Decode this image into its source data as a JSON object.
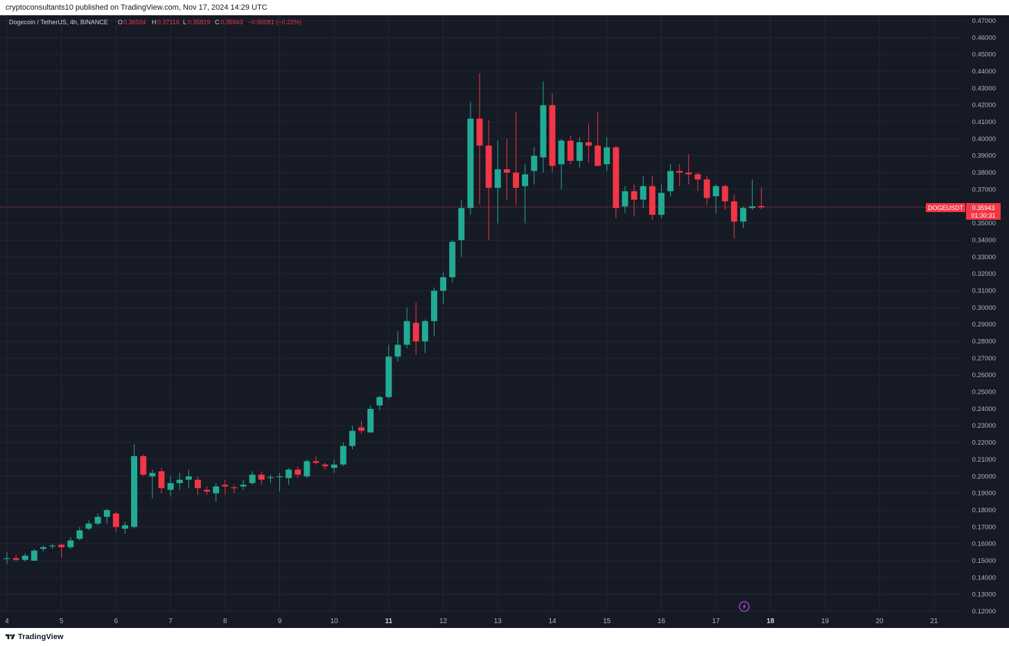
{
  "header": {
    "text": "cryptoconsultants10 published on TradingView.com, Nov 17, 2024 14:29 UTC"
  },
  "legend": {
    "symbol": "Dogecoin / TetherUS, 4h, BINANCE",
    "o_label": "O",
    "o_value": "0.36024",
    "h_label": "H",
    "h_value": "0.37116",
    "l_label": "L",
    "l_value": "0.35819",
    "c_label": "C",
    "c_value": "0.35943",
    "change": "−0.00081 (−0.22%)"
  },
  "price_tag": {
    "symbol": "DOGEUSDT",
    "price": "0.35943",
    "countdown": "01:30:31"
  },
  "footer": {
    "brand": "TradingView"
  },
  "colors": {
    "background": "#161a25",
    "up": "#22ab94",
    "down": "#f23645",
    "grid": "#232733",
    "text": "#b2b5be",
    "price_tag": "#f23645"
  },
  "chart_data": {
    "type": "candlestick",
    "x_labels": [
      "4",
      "5",
      "6",
      "7",
      "8",
      "9",
      "10",
      "11",
      "12",
      "13",
      "14",
      "15",
      "16",
      "17",
      "18",
      "19",
      "20",
      "21"
    ],
    "bold_x_labels": [
      "11",
      "18"
    ],
    "y_ticks": [
      "0.12000",
      "0.13000",
      "0.14000",
      "0.15000",
      "0.16000",
      "0.17000",
      "0.18000",
      "0.19000",
      "0.20000",
      "0.21000",
      "0.22000",
      "0.23000",
      "0.24000",
      "0.25000",
      "0.26000",
      "0.27000",
      "0.28000",
      "0.29000",
      "0.30000",
      "0.31000",
      "0.32000",
      "0.33000",
      "0.34000",
      "0.35000",
      "0.36000",
      "0.37000",
      "0.38000",
      "0.39000",
      "0.40000",
      "0.41000",
      "0.42000",
      "0.43000",
      "0.44000",
      "0.45000",
      "0.46000",
      "0.47000"
    ],
    "ylim": [
      0.12,
      0.47
    ],
    "xlim_days": [
      4,
      21.5
    ],
    "candles_per_day": 6,
    "first_candle_day": 4,
    "last_price": 0.35943,
    "candles": [
      [
        0.151,
        0.155,
        0.148,
        0.1515
      ],
      [
        0.1515,
        0.1535,
        0.1495,
        0.1505
      ],
      [
        0.1505,
        0.1545,
        0.1495,
        0.153
      ],
      [
        0.15,
        0.157,
        0.15,
        0.156
      ],
      [
        0.157,
        0.159,
        0.1555,
        0.158
      ],
      [
        0.1585,
        0.16,
        0.157,
        0.159
      ],
      [
        0.1595,
        0.16,
        0.152,
        0.158
      ],
      [
        0.158,
        0.164,
        0.157,
        0.162
      ],
      [
        0.163,
        0.17,
        0.162,
        0.168
      ],
      [
        0.169,
        0.174,
        0.168,
        0.172
      ],
      [
        0.172,
        0.178,
        0.171,
        0.176
      ],
      [
        0.176,
        0.181,
        0.172,
        0.18
      ],
      [
        0.178,
        0.179,
        0.167,
        0.17
      ],
      [
        0.169,
        0.173,
        0.166,
        0.171
      ],
      [
        0.17,
        0.219,
        0.169,
        0.212
      ],
      [
        0.212,
        0.213,
        0.2,
        0.201
      ],
      [
        0.2,
        0.204,
        0.187,
        0.202
      ],
      [
        0.203,
        0.205,
        0.19,
        0.193
      ],
      [
        0.192,
        0.2,
        0.188,
        0.196
      ],
      [
        0.196,
        0.202,
        0.192,
        0.198
      ],
      [
        0.198,
        0.204,
        0.193,
        0.2
      ],
      [
        0.198,
        0.2,
        0.189,
        0.193
      ],
      [
        0.192,
        0.194,
        0.189,
        0.191
      ],
      [
        0.19,
        0.196,
        0.185,
        0.194
      ],
      [
        0.195,
        0.198,
        0.189,
        0.194
      ],
      [
        0.1935,
        0.195,
        0.19,
        0.193
      ],
      [
        0.194,
        0.198,
        0.192,
        0.195
      ],
      [
        0.196,
        0.203,
        0.195,
        0.201
      ],
      [
        0.201,
        0.203,
        0.195,
        0.198
      ],
      [
        0.199,
        0.201,
        0.196,
        0.1995
      ],
      [
        0.1995,
        0.202,
        0.191,
        0.2
      ],
      [
        0.199,
        0.205,
        0.195,
        0.204
      ],
      [
        0.204,
        0.206,
        0.199,
        0.201
      ],
      [
        0.2,
        0.21,
        0.199,
        0.209
      ],
      [
        0.209,
        0.212,
        0.207,
        0.208
      ],
      [
        0.207,
        0.208,
        0.204,
        0.206
      ],
      [
        0.205,
        0.21,
        0.202,
        0.207
      ],
      [
        0.207,
        0.22,
        0.206,
        0.218
      ],
      [
        0.218,
        0.23,
        0.216,
        0.227
      ],
      [
        0.229,
        0.233,
        0.225,
        0.227
      ],
      [
        0.226,
        0.242,
        0.226,
        0.24
      ],
      [
        0.242,
        0.248,
        0.239,
        0.247
      ],
      [
        0.247,
        0.278,
        0.246,
        0.271
      ],
      [
        0.271,
        0.286,
        0.268,
        0.278
      ],
      [
        0.278,
        0.3,
        0.276,
        0.292
      ],
      [
        0.291,
        0.303,
        0.272,
        0.28
      ],
      [
        0.28,
        0.293,
        0.273,
        0.292
      ],
      [
        0.292,
        0.312,
        0.283,
        0.31
      ],
      [
        0.31,
        0.321,
        0.302,
        0.318
      ],
      [
        0.318,
        0.34,
        0.315,
        0.339
      ],
      [
        0.34,
        0.364,
        0.33,
        0.359
      ],
      [
        0.359,
        0.422,
        0.355,
        0.412
      ],
      [
        0.412,
        0.439,
        0.361,
        0.396
      ],
      [
        0.396,
        0.411,
        0.34,
        0.371
      ],
      [
        0.371,
        0.399,
        0.35,
        0.382
      ],
      [
        0.382,
        0.4,
        0.364,
        0.38
      ],
      [
        0.38,
        0.416,
        0.361,
        0.371
      ],
      [
        0.372,
        0.385,
        0.35,
        0.379
      ],
      [
        0.381,
        0.395,
        0.373,
        0.39
      ],
      [
        0.389,
        0.434,
        0.38,
        0.42
      ],
      [
        0.42,
        0.427,
        0.38,
        0.384
      ],
      [
        0.385,
        0.4,
        0.37,
        0.399
      ],
      [
        0.399,
        0.402,
        0.385,
        0.387
      ],
      [
        0.387,
        0.401,
        0.383,
        0.398
      ],
      [
        0.398,
        0.409,
        0.386,
        0.396
      ],
      [
        0.396,
        0.416,
        0.384,
        0.384
      ],
      [
        0.385,
        0.401,
        0.381,
        0.395
      ],
      [
        0.395,
        0.396,
        0.353,
        0.359
      ],
      [
        0.36,
        0.372,
        0.356,
        0.369
      ],
      [
        0.369,
        0.373,
        0.354,
        0.364
      ],
      [
        0.364,
        0.378,
        0.359,
        0.372
      ],
      [
        0.372,
        0.378,
        0.352,
        0.355
      ],
      [
        0.355,
        0.373,
        0.353,
        0.368
      ],
      [
        0.369,
        0.385,
        0.366,
        0.381
      ],
      [
        0.381,
        0.385,
        0.372,
        0.38
      ],
      [
        0.38,
        0.391,
        0.373,
        0.379
      ],
      [
        0.379,
        0.38,
        0.369,
        0.376
      ],
      [
        0.376,
        0.378,
        0.361,
        0.365
      ],
      [
        0.366,
        0.373,
        0.356,
        0.372
      ],
      [
        0.372,
        0.373,
        0.358,
        0.363
      ],
      [
        0.363,
        0.367,
        0.341,
        0.351
      ],
      [
        0.351,
        0.36,
        0.347,
        0.359
      ],
      [
        0.359,
        0.376,
        0.358,
        0.36
      ],
      [
        0.3602,
        0.3712,
        0.3582,
        0.3594
      ]
    ]
  }
}
